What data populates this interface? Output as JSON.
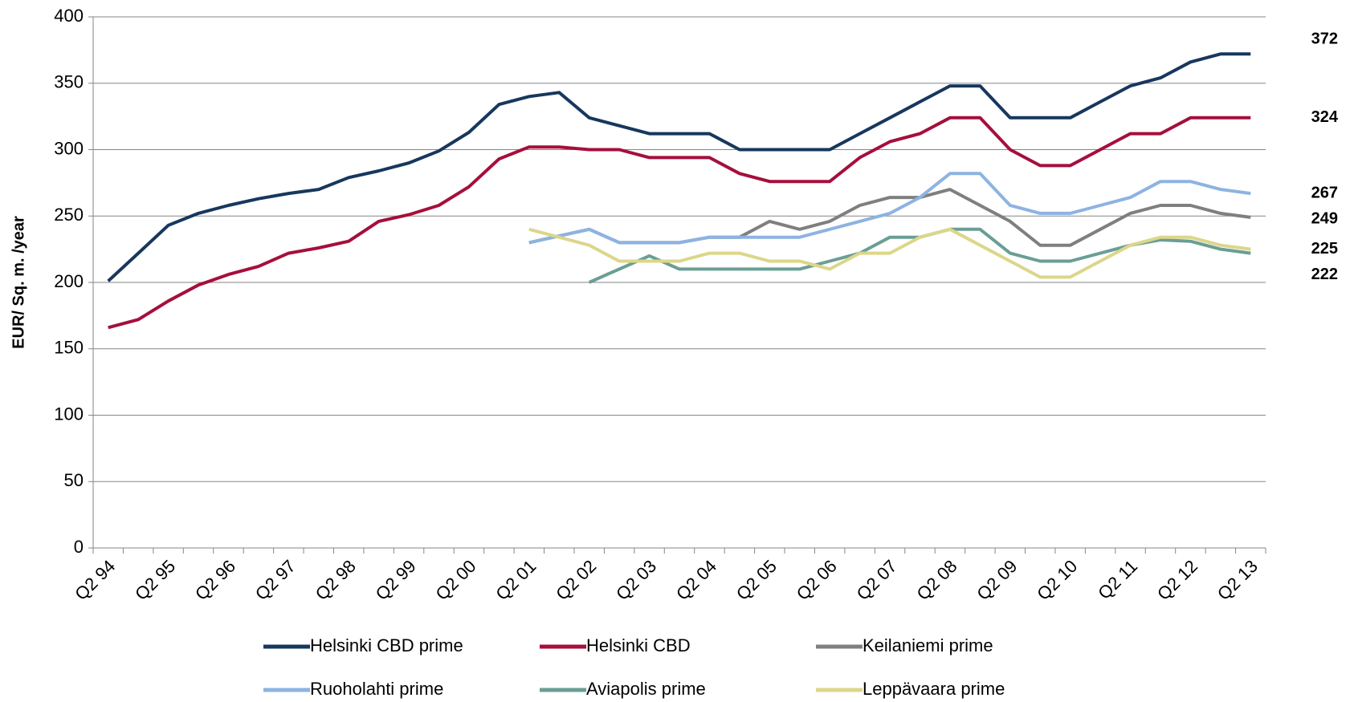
{
  "chart_data": {
    "type": "line",
    "y_label": "EUR/ Sq. m. /year",
    "categories": [
      "Q2 94",
      null,
      "Q2 95",
      null,
      "Q2 96",
      null,
      "Q2 97",
      null,
      "Q2 98",
      null,
      "Q2 99",
      null,
      "Q2 00",
      null,
      "Q2 01",
      null,
      "Q2 02",
      null,
      "Q2 03",
      null,
      "Q2 04",
      null,
      "Q2 05",
      null,
      "Q2 06",
      null,
      "Q2 07",
      null,
      "Q2 08",
      null,
      "Q2 09",
      null,
      "Q2 10",
      null,
      "Q2 11",
      null,
      "Q2 12",
      null,
      "Q2 13"
    ],
    "ylim": [
      0,
      400
    ],
    "yticks": [
      0,
      50,
      100,
      150,
      200,
      250,
      300,
      350,
      400
    ],
    "grid": true,
    "series": [
      {
        "name": "Helsinki CBD prime",
        "color": "#17375e",
        "values": [
          201,
          222,
          243,
          252,
          258,
          263,
          267,
          270,
          279,
          284,
          290,
          299,
          313,
          334,
          340,
          343,
          324,
          318,
          312,
          312,
          312,
          300,
          300,
          300,
          300,
          312,
          324,
          336,
          348,
          348,
          324,
          324,
          324,
          336,
          348,
          354,
          366,
          372,
          372
        ]
      },
      {
        "name": "Helsinki CBD",
        "color": "#a50f3c",
        "values": [
          166,
          172,
          186,
          198,
          206,
          212,
          222,
          226,
          231,
          246,
          251,
          258,
          272,
          293,
          302,
          302,
          300,
          300,
          294,
          294,
          294,
          282,
          276,
          276,
          276,
          294,
          306,
          312,
          324,
          324,
          300,
          288,
          288,
          300,
          312,
          312,
          324,
          324,
          324
        ]
      },
      {
        "name": "Keilaniemi prime",
        "color": "#7f7f7f",
        "values": [
          null,
          null,
          null,
          null,
          null,
          null,
          null,
          null,
          null,
          null,
          null,
          null,
          null,
          null,
          230,
          235,
          240,
          230,
          230,
          230,
          234,
          234,
          246,
          240,
          246,
          258,
          264,
          264,
          270,
          258,
          246,
          228,
          228,
          240,
          252,
          258,
          258,
          252,
          249
        ]
      },
      {
        "name": "Ruoholahti prime",
        "color": "#8db3e2",
        "values": [
          null,
          null,
          null,
          null,
          null,
          null,
          null,
          null,
          null,
          null,
          null,
          null,
          null,
          null,
          230,
          235,
          240,
          230,
          230,
          230,
          234,
          234,
          234,
          234,
          240,
          246,
          252,
          264,
          282,
          282,
          258,
          252,
          252,
          258,
          264,
          276,
          276,
          270,
          267
        ]
      },
      {
        "name": "Aviapolis prime",
        "color": "#6a9e95",
        "values": [
          null,
          null,
          null,
          null,
          null,
          null,
          null,
          null,
          null,
          null,
          null,
          null,
          null,
          null,
          null,
          null,
          200,
          210,
          220,
          210,
          210,
          210,
          210,
          210,
          216,
          222,
          234,
          234,
          240,
          240,
          222,
          216,
          216,
          222,
          228,
          232,
          231,
          225,
          222
        ]
      },
      {
        "name": "Leppävaara prime",
        "color": "#dcd68a",
        "values": [
          null,
          null,
          null,
          null,
          null,
          null,
          null,
          null,
          null,
          null,
          null,
          null,
          null,
          null,
          240,
          234,
          228,
          216,
          216,
          216,
          222,
          222,
          216,
          216,
          210,
          222,
          222,
          234,
          240,
          228,
          216,
          204,
          204,
          216,
          228,
          234,
          234,
          228,
          225
        ]
      }
    ]
  }
}
